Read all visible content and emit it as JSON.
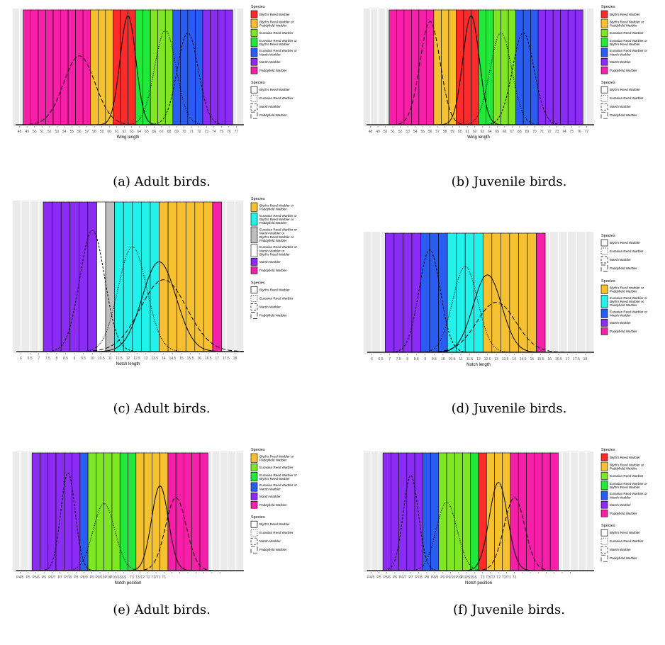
{
  "colors": {
    "blyth": "#ff2a2a",
    "blyth_paddy": "#f5c130",
    "eurasian": "#7ee622",
    "eur_blyth": "#22e83b",
    "eur_marsh": "#2b5cf2",
    "marsh": "#8b2cf5",
    "paddy": "#f51fa8",
    "eur_blyth_paddy": "#22f2ea",
    "eur_marsh_blyth_paddy": "#bebebe",
    "eur_marsh_blyth": "#ffffff"
  },
  "curve_styles": [
    "solid",
    "dotted",
    "dashed",
    "longdash"
  ],
  "fill_legend": {
    "title": "Species",
    "entries": [
      {
        "key": "blyth",
        "label": "Blyth's Reed Warbler"
      },
      {
        "key": "blyth_paddy",
        "label": "Blyth's Reed Warbler or\nPaddyfield Warbler"
      },
      {
        "key": "eurasian",
        "label": "Eurasian Reed Warbler"
      },
      {
        "key": "eur_blyth",
        "label": "Eurasian Reed Warbler or\nBlyth's Reed Warbler"
      },
      {
        "key": "eur_marsh",
        "label": "Eurasian Reed Warbler or\nMarsh Warbler"
      },
      {
        "key": "marsh",
        "label": "Marsh Warbler"
      },
      {
        "key": "paddy",
        "label": "Paddyfield Warbler"
      },
      {
        "key": "eur_blyth_paddy",
        "label": "Eurasian Reed Warbler or\nBlyth's Reed Warbler or\nPaddyfield Warbler"
      },
      {
        "key": "eur_marsh_blyth_paddy",
        "label": "Eurasian Reed Warbler or\nMarsh Warbler or\nBlyth's Reed Warbler or\nPaddyfield Warbler"
      },
      {
        "key": "eur_marsh_blyth",
        "label": "Eurasian Reed Warbler or\nMarsh Warbler or\nBlyth's Reed Warbler"
      }
    ]
  },
  "line_legend": {
    "title": "Species",
    "entries": [
      "Blyth's Reed Warbler",
      "Eurasian Reed Warbler",
      "Marsh Warbler",
      "Paddyfield Warbler"
    ]
  },
  "chart_data": [
    {
      "id": "a",
      "type": "bar",
      "caption": "(a) Adult birds.",
      "xlabel": "Wing length",
      "tick_labels": [
        "48",
        "49",
        "50",
        "51",
        "52",
        "53",
        "54",
        "55",
        "56",
        "57",
        "58",
        "59",
        "60",
        "61",
        "62",
        "63",
        "64",
        "65",
        "66",
        "67",
        "68",
        "69",
        "70",
        "71",
        "72",
        "73",
        "74",
        "75",
        "76",
        "77"
      ],
      "bars": [
        "paddy",
        "paddy",
        "paddy",
        "paddy",
        "paddy",
        "paddy",
        "paddy",
        "paddy",
        "paddy",
        "blyth_paddy",
        "blyth_paddy",
        "blyth_paddy",
        "blyth",
        "blyth",
        "blyth",
        "eur_blyth",
        "eur_blyth",
        "eurasian",
        "eurasian",
        "eurasian",
        "eur_marsh",
        "eur_marsh",
        "eur_marsh",
        "eur_marsh",
        "marsh",
        "marsh",
        "marsh",
        "marsh"
      ],
      "bar_start": 1.5,
      "grid_count": 31,
      "curves": [
        {
          "style": "solid",
          "mu": 15.5,
          "sd": 1.05,
          "peak": 0.95
        },
        {
          "style": "dotted",
          "mu": 20.5,
          "sd": 1.45,
          "peak": 0.82
        },
        {
          "style": "dashed",
          "mu": 23.5,
          "sd": 1.4,
          "peak": 0.8
        },
        {
          "style": "longdash",
          "mu": 9.0,
          "sd": 2.1,
          "peak": 0.6
        }
      ],
      "legends": [
        "fill:0,1,2,3,4,5,6",
        "line"
      ]
    },
    {
      "id": "b",
      "type": "bar",
      "caption": "(b) Juvenile birds.",
      "xlabel": "Wing length",
      "tick_labels": [
        "48",
        "49",
        "50",
        "51",
        "52",
        "53",
        "54",
        "55",
        "56",
        "57",
        "58",
        "59",
        "60",
        "61",
        "62",
        "63",
        "64",
        "65",
        "66",
        "67",
        "68",
        "69",
        "70",
        "71",
        "72",
        "73",
        "74",
        "75",
        "76",
        "77"
      ],
      "bars": [
        "paddy",
        "paddy",
        "paddy",
        "paddy",
        "paddy",
        "paddy",
        "blyth_paddy",
        "blyth_paddy",
        "blyth_paddy",
        "blyth",
        "blyth",
        "blyth",
        "eur_blyth",
        "eur_blyth",
        "eurasian",
        "eurasian",
        "eurasian",
        "eur_marsh",
        "eur_marsh",
        "eur_marsh",
        "marsh",
        "marsh",
        "marsh",
        "marsh",
        "marsh",
        "marsh"
      ],
      "bar_start": 3.5,
      "grid_count": 31,
      "curves": [
        {
          "style": "solid",
          "mu": 14.5,
          "sd": 1.1,
          "peak": 0.95
        },
        {
          "style": "dotted",
          "mu": 18.5,
          "sd": 1.45,
          "peak": 0.8
        },
        {
          "style": "dashed",
          "mu": 21.5,
          "sd": 1.45,
          "peak": 0.8
        },
        {
          "style": "longdash",
          "mu": 9.0,
          "sd": 1.35,
          "peak": 0.9
        }
      ],
      "legends": [
        "fill:0,1,2,3,4,5,6",
        "line"
      ]
    },
    {
      "id": "c",
      "type": "bar",
      "caption": "(c) Adult birds.",
      "xlabel": "Notch length",
      "tick_labels": [
        "6",
        "6.5",
        "7",
        "7.5",
        "8",
        "8.5",
        "9",
        "9.5",
        "10",
        "10.5",
        "11",
        "11.5",
        "12",
        "12.5",
        "13",
        "13.5",
        "14",
        "14.5",
        "15",
        "15.5",
        "16",
        "16.5",
        "17",
        "17.5",
        "18"
      ],
      "bars": [
        "marsh",
        "marsh",
        "marsh",
        "marsh",
        "marsh",
        "marsh",
        "eur_marsh_blyth",
        "eur_marsh_blyth_paddy",
        "eur_blyth_paddy",
        "eur_blyth_paddy",
        "eur_blyth_paddy",
        "eur_blyth_paddy",
        "eur_blyth_paddy",
        "blyth_paddy",
        "blyth_paddy",
        "blyth_paddy",
        "blyth_paddy",
        "blyth_paddy",
        "blyth_paddy",
        "paddy"
      ],
      "bar_start": 3.5,
      "grid_count": 26,
      "curves": [
        {
          "style": "solid",
          "mu": 16.5,
          "sd": 1.9,
          "peak": 0.6
        },
        {
          "style": "dotted",
          "mu": 13.5,
          "sd": 1.6,
          "peak": 0.7
        },
        {
          "style": "dashed",
          "mu": 9.0,
          "sd": 1.4,
          "peak": 0.81
        },
        {
          "style": "longdash",
          "mu": 17.0,
          "sd": 2.6,
          "peak": 0.48
        }
      ],
      "legends": [
        "fill:1,7,8,9,5,6",
        "line"
      ]
    },
    {
      "id": "d",
      "type": "bar",
      "caption": "(d) Juvenile birds.",
      "xlabel": "Notch length",
      "tick_labels": [
        "6",
        "6.5",
        "7",
        "7.5",
        "8",
        "8.5",
        "9",
        "9.5",
        "10",
        "10.5",
        "11",
        "11.5",
        "12",
        "12.5",
        "13",
        "13.5",
        "14",
        "14.5",
        "15",
        "15.5",
        "16",
        "16.5",
        "17",
        "17.5",
        "18"
      ],
      "bars": [
        "marsh",
        "marsh",
        "marsh",
        "marsh",
        "eur_marsh",
        "eur_marsh",
        "eur_marsh",
        "eur_blyth_paddy",
        "eur_blyth_paddy",
        "eur_blyth_paddy",
        "eur_blyth_paddy",
        "blyth_paddy",
        "blyth_paddy",
        "blyth_paddy",
        "blyth_paddy",
        "blyth_paddy",
        "blyth_paddy",
        "paddy"
      ],
      "bar_start": 2.5,
      "grid_count": 26,
      "curves": [
        {
          "style": "solid",
          "mu": 14.0,
          "sd": 1.6,
          "peak": 0.65
        },
        {
          "style": "dotted",
          "mu": 11.5,
          "sd": 1.4,
          "peak": 0.72
        },
        {
          "style": "dashed",
          "mu": 7.5,
          "sd": 1.2,
          "peak": 0.86
        },
        {
          "style": "longdash",
          "mu": 15.0,
          "sd": 2.2,
          "peak": 0.42
        }
      ],
      "legends": [
        "line",
        "fill:1,7,4,5,6"
      ]
    },
    {
      "id": "e",
      "type": "bar",
      "caption": "(e) Adult birds.",
      "xlabel": "Notch position",
      "tick_labels": [
        "P4/5",
        "P5",
        "P5/6",
        "P6",
        "P6/7",
        "P7",
        "P7/8",
        "P8",
        "P8/9",
        "P9",
        "P9/10",
        "P10",
        "P10/SS",
        "SS",
        "T3",
        "T3/T2",
        "T2",
        "T2/T1",
        "T1",
        "",
        "",
        "",
        "",
        "",
        "",
        ""
      ],
      "bars": [
        "marsh",
        "marsh",
        "marsh",
        "marsh",
        "marsh",
        "marsh",
        "eur_marsh",
        "eurasian",
        "eurasian",
        "eurasian",
        "eurasian",
        "eur_blyth",
        "eur_blyth",
        "blyth_paddy",
        "blyth_paddy",
        "blyth_paddy",
        "blyth_paddy",
        "paddy",
        "paddy",
        "paddy",
        "paddy",
        "paddy"
      ],
      "bar_start": 2.5,
      "grid_count": 29,
      "curves": [
        {
          "style": "solid",
          "mu": 18.5,
          "sd": 1.05,
          "peak": 0.72
        },
        {
          "style": "dotted",
          "mu": 11.5,
          "sd": 1.35,
          "peak": 0.57
        },
        {
          "style": "dashed",
          "mu": 7.0,
          "sd": 0.9,
          "peak": 0.83
        },
        {
          "style": "longdash",
          "mu": 20.5,
          "sd": 1.3,
          "peak": 0.62
        }
      ],
      "legends": [
        "fill:1,2,3,4,5,6",
        "line"
      ]
    },
    {
      "id": "f",
      "type": "bar",
      "caption": "(f) Juvenile birds.",
      "xlabel": "Notch position",
      "tick_labels": [
        "P4/5",
        "P5",
        "P5/6",
        "P6",
        "P6/7",
        "P7",
        "P7/8",
        "P8",
        "P8/9",
        "P9",
        "P9/10",
        "P10",
        "P10/SS",
        "SS",
        "T3",
        "T3/T2",
        "T2",
        "T2/T1",
        "T1",
        "",
        "",
        "",
        "",
        "",
        "",
        ""
      ],
      "bars": [
        "marsh",
        "marsh",
        "marsh",
        "marsh",
        "marsh",
        "eur_marsh",
        "eur_marsh",
        "eurasian",
        "eurasian",
        "eurasian",
        "eurasian",
        "eur_blyth",
        "blyth",
        "blyth_paddy",
        "blyth_paddy",
        "blyth_paddy",
        "paddy",
        "paddy",
        "paddy",
        "paddy",
        "paddy",
        "paddy"
      ],
      "bar_start": 2.5,
      "grid_count": 29,
      "curves": [
        {
          "style": "solid",
          "mu": 17.0,
          "sd": 1.15,
          "peak": 0.75
        },
        {
          "style": "dotted",
          "mu": 10.5,
          "sd": 1.3,
          "peak": 0.58
        },
        {
          "style": "dashed",
          "mu": 6.0,
          "sd": 0.95,
          "peak": 0.81
        },
        {
          "style": "longdash",
          "mu": 19.0,
          "sd": 1.3,
          "peak": 0.62
        }
      ],
      "legends": [
        "fill:0,1,2,3,4,5,6",
        "line"
      ]
    }
  ]
}
